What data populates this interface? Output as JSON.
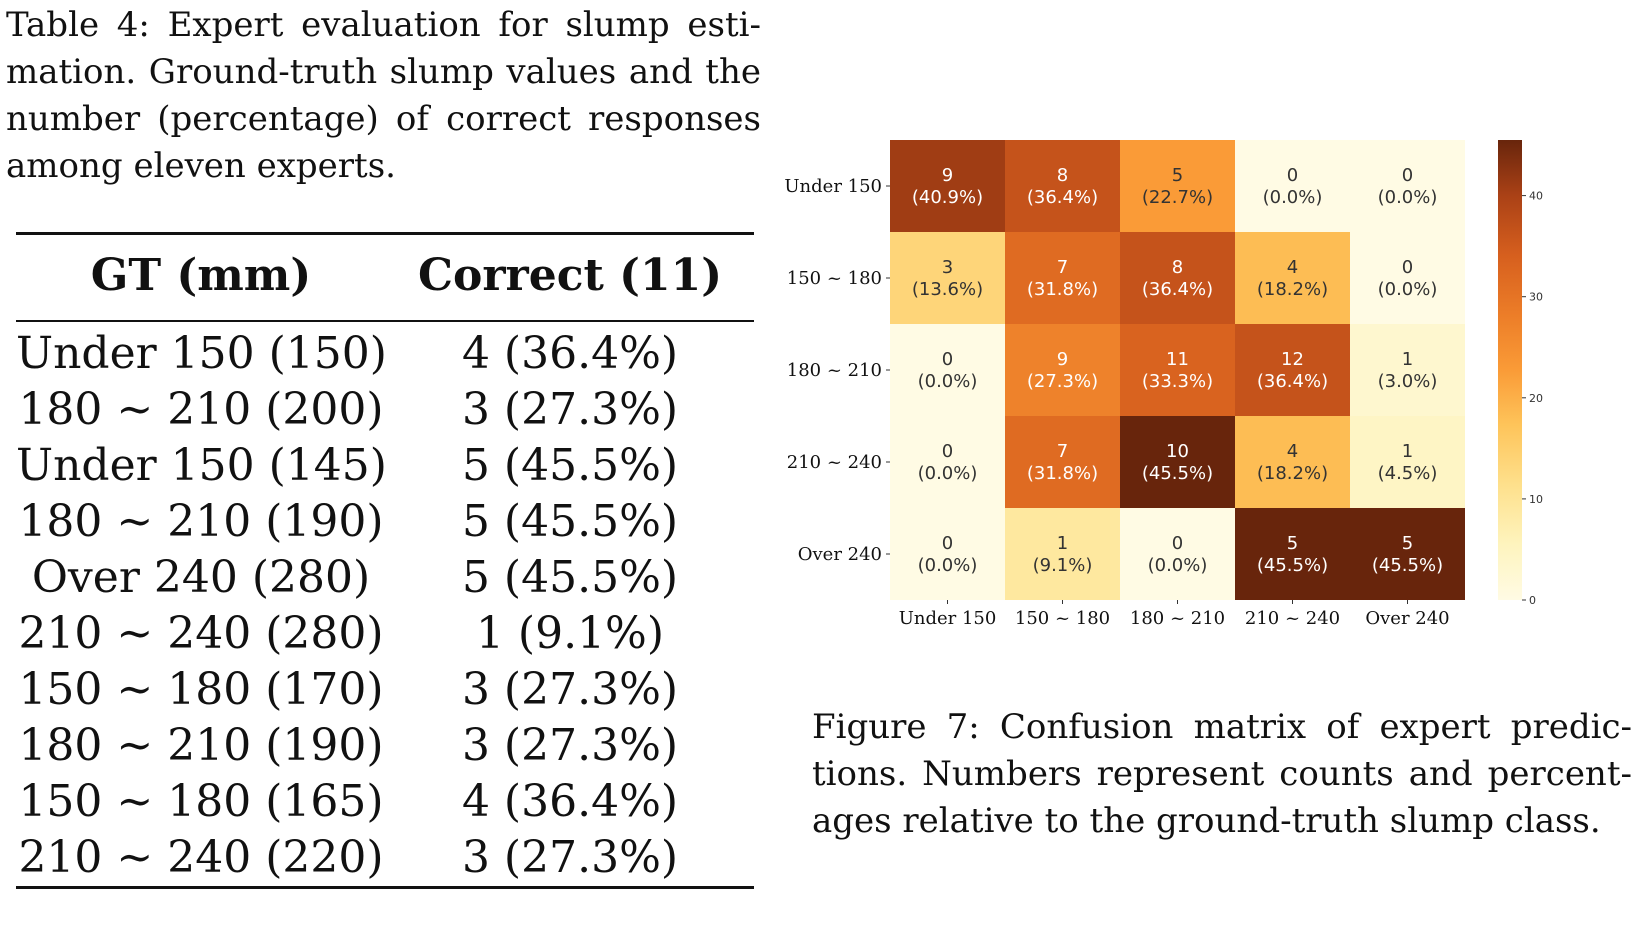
{
  "table": {
    "caption_lines": [
      "Table 4: Expert evaluation for slump esti-",
      "mation. Ground-truth slump values and the",
      "number (percentage) of correct responses",
      "among eleven experts."
    ],
    "headers": [
      "GT (mm)",
      "Correct (11)"
    ],
    "rows": [
      {
        "gt": "Under 150 (150)",
        "correct": "4 (36.4%)"
      },
      {
        "gt": "180 ~ 210 (200)",
        "correct": "3 (27.3%)"
      },
      {
        "gt": "Under 150 (145)",
        "correct": "5 (45.5%)"
      },
      {
        "gt": "180 ~ 210 (190)",
        "correct": "5 (45.5%)"
      },
      {
        "gt": "Over 240 (280)",
        "correct": "5 (45.5%)"
      },
      {
        "gt": "210 ~ 240 (280)",
        "correct": "1 (9.1%)"
      },
      {
        "gt": "150 ~ 180 (170)",
        "correct": "3 (27.3%)"
      },
      {
        "gt": "180 ~ 210 (190)",
        "correct": "3 (27.3%)"
      },
      {
        "gt": "150 ~ 180 (165)",
        "correct": "4 (36.4%)"
      },
      {
        "gt": "210 ~ 240 (220)",
        "correct": "3 (27.3%)"
      }
    ]
  },
  "figure": {
    "caption_lines": [
      "Figure 7: Confusion matrix of expert predic-",
      "tions. Numbers represent counts and percent-",
      "ages relative to the ground-truth slump class."
    ]
  },
  "chart_data": {
    "type": "heatmap",
    "title": "",
    "xlabel": "",
    "ylabel": "",
    "row_labels": [
      "Under 150",
      "150 ~ 180",
      "180 ~ 210",
      "210 ~ 240",
      "Over 240"
    ],
    "col_labels": [
      "Under 150",
      "150 ~ 180",
      "180 ~ 210",
      "210 ~ 240",
      "Over 240"
    ],
    "counts": [
      [
        9,
        8,
        5,
        0,
        0
      ],
      [
        3,
        7,
        8,
        4,
        0
      ],
      [
        0,
        9,
        11,
        12,
        1
      ],
      [
        0,
        7,
        10,
        4,
        1
      ],
      [
        0,
        1,
        0,
        5,
        5
      ]
    ],
    "percentages": [
      [
        "40.9%",
        "36.4%",
        "22.7%",
        "0.0%",
        "0.0%"
      ],
      [
        "13.6%",
        "31.8%",
        "36.4%",
        "18.2%",
        "0.0%"
      ],
      [
        "0.0%",
        "27.3%",
        "33.3%",
        "36.4%",
        "3.0%"
      ],
      [
        "0.0%",
        "31.8%",
        "45.5%",
        "18.2%",
        "4.5%"
      ],
      [
        "0.0%",
        "9.1%",
        "0.0%",
        "45.5%",
        "45.5%"
      ]
    ],
    "percent_values": [
      [
        40.9,
        36.4,
        22.7,
        0.0,
        0.0
      ],
      [
        13.6,
        31.8,
        36.4,
        18.2,
        0.0
      ],
      [
        0.0,
        27.3,
        33.3,
        36.4,
        3.0
      ],
      [
        0.0,
        31.8,
        45.5,
        18.2,
        4.5
      ],
      [
        0.0,
        9.1,
        0.0,
        45.5,
        45.5
      ]
    ],
    "colorbar": {
      "min": 0,
      "max": 45.5,
      "ticks": [
        0,
        10,
        20,
        30,
        40
      ]
    },
    "colormap": "YlOrBr"
  }
}
